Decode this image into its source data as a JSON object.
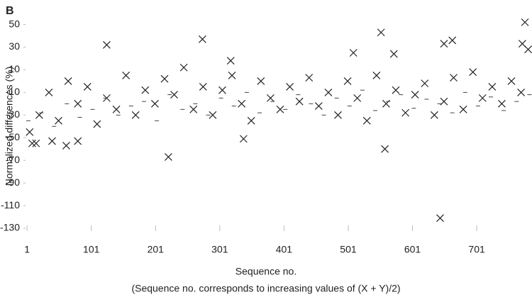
{
  "chart_data": {
    "type": "scatter",
    "panel_label": "B",
    "ylabel": "Normalized differences (%)",
    "xlabel": "Sequence no.",
    "xlabel_sub": "(Sequence no. corresponds to increasing values of (X + Y)/2)",
    "xlim": [
      -8,
      787
    ],
    "ylim": [
      -135,
      56
    ],
    "xticks": [
      1,
      101,
      201,
      301,
      401,
      501,
      601,
      701
    ],
    "yticks": [
      50,
      30,
      10,
      -10,
      -30,
      -50,
      -70,
      -90,
      -110,
      -130
    ],
    "grid": false,
    "series": [
      {
        "marker": "cross",
        "color": "#222222",
        "x": [
          5,
          20,
          35,
          50,
          65,
          80,
          95,
          110,
          125,
          140,
          155,
          170,
          185,
          200,
          215,
          230,
          245,
          260,
          275,
          290,
          305,
          320,
          335,
          350,
          365,
          380,
          395,
          410,
          425,
          440,
          455,
          470,
          485,
          500,
          515,
          530,
          545,
          560,
          575,
          590,
          605,
          620,
          635,
          650,
          665,
          680,
          695,
          710,
          725,
          740,
          755,
          770,
          125,
          221,
          274,
          318,
          338,
          509,
          552,
          558,
          572,
          644,
          650,
          663,
          776,
          772,
          781,
          62,
          9,
          15,
          40,
          80
        ],
        "values": [
          -45,
          -30,
          -10,
          -35,
          0,
          -20,
          -5,
          -38,
          -15,
          -25,
          5,
          -30,
          -8,
          -20,
          2,
          -12,
          12,
          -25,
          -5,
          -30,
          -8,
          5,
          -20,
          -35,
          0,
          -15,
          -25,
          -5,
          -18,
          3,
          -22,
          -10,
          -30,
          0,
          -15,
          -35,
          5,
          -20,
          -8,
          -28,
          -12,
          -2,
          -30,
          -18,
          3,
          -25,
          8,
          -15,
          -5,
          -20,
          0,
          -10,
          32,
          -67,
          37,
          18,
          -51,
          25,
          43,
          -60,
          24,
          -121,
          33,
          36,
          52,
          33,
          28,
          -57,
          -55,
          -55,
          -53,
          -53
        ]
      },
      {
        "marker": "dash",
        "color": "#444444",
        "x": [
          3,
          23,
          43,
          63,
          83,
          103,
          123,
          143,
          163,
          183,
          203,
          223,
          243,
          263,
          283,
          303,
          323,
          343,
          363,
          383,
          403,
          423,
          443,
          463,
          483,
          503,
          523,
          543,
          563,
          583,
          603,
          623,
          643,
          663,
          683,
          703,
          723,
          743,
          763,
          783
        ],
        "values": [
          -35,
          -28,
          -40,
          -20,
          -32,
          -25,
          -15,
          -30,
          -22,
          -18,
          -35,
          -12,
          -25,
          -20,
          -30,
          -15,
          -22,
          -10,
          -28,
          -18,
          -25,
          -12,
          -20,
          -30,
          -15,
          -22,
          -8,
          -26,
          -18,
          -12,
          -24,
          -16,
          -20,
          -28,
          -10,
          -22,
          -14,
          -26,
          -18,
          -12
        ]
      }
    ]
  }
}
